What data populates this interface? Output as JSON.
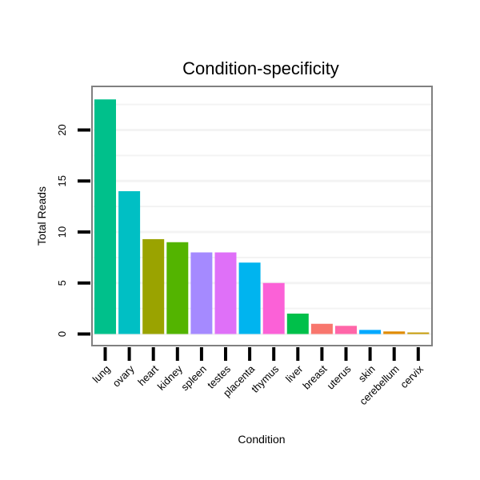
{
  "chart_data": {
    "type": "bar",
    "title": "Condition-specificity",
    "xlabel": "Condition",
    "ylabel": "Total Reads",
    "ylim": [
      0,
      23
    ],
    "yticks": [
      0,
      5,
      10,
      15,
      20
    ],
    "grid": true,
    "categories": [
      "lung",
      "ovary",
      "heart",
      "kidney",
      "spleen",
      "testes",
      "placenta",
      "thymus",
      "liver",
      "breast",
      "uterus",
      "skin",
      "cerebellum",
      "cervix"
    ],
    "values": [
      23,
      14,
      9.3,
      9,
      8,
      8,
      7,
      5,
      2,
      1,
      0.8,
      0.4,
      0.25,
      0.15
    ],
    "colors": [
      "#00c08b",
      "#00bfc4",
      "#9aa300",
      "#53b400",
      "#a58aff",
      "#df70f8",
      "#00b4ef",
      "#fb61d7",
      "#00c04a",
      "#f8766d",
      "#ff66a8",
      "#00a9ff",
      "#e08b00",
      "#c59900"
    ]
  }
}
